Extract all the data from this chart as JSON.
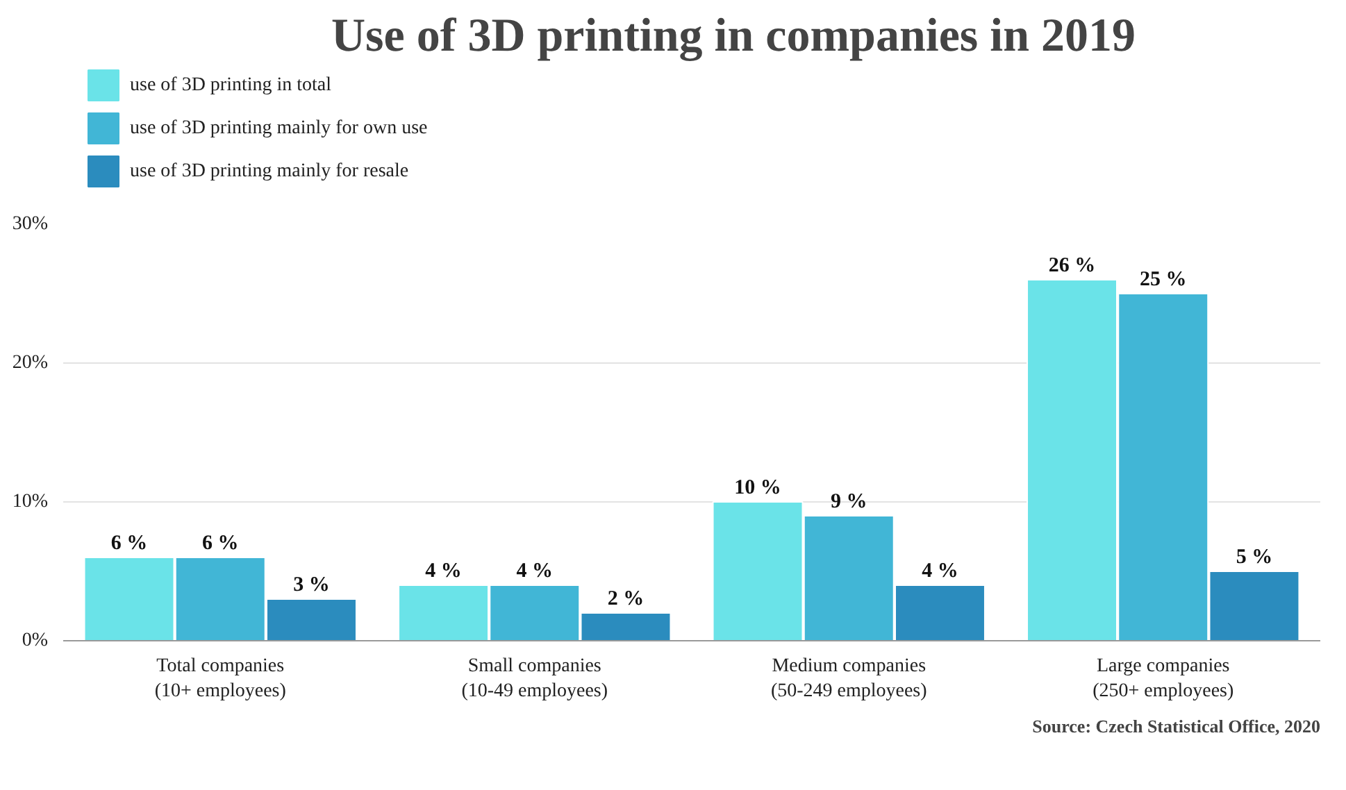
{
  "chart_data": {
    "type": "bar",
    "title": "Use of 3D printing in companies in 2019",
    "categories": [
      "Total companies\n(10+ employees)",
      "Small companies\n(10-49 employees)",
      "Medium companies\n(50-249 employees)",
      "Large companies\n(250+ employees)"
    ],
    "series": [
      {
        "name": "use of 3D printing in total",
        "color": "#6ae3e8",
        "values": [
          6,
          4,
          10,
          26
        ],
        "value_labels": [
          "6 %",
          "4 %",
          "10 %",
          "26 %"
        ]
      },
      {
        "name": "use of 3D printing mainly for own use",
        "color": "#41b6d6",
        "values": [
          6,
          4,
          9,
          25
        ],
        "value_labels": [
          "6 %",
          "4 %",
          "9 %",
          "25 %"
        ]
      },
      {
        "name": "use of 3D printing mainly for resale",
        "color": "#2b8cbe",
        "values": [
          3,
          2,
          4,
          5
        ],
        "value_labels": [
          "3 %",
          "2 %",
          "4 %",
          "5 %"
        ]
      }
    ],
    "ylim": [
      0,
      30
    ],
    "yticks": [
      {
        "value": 0,
        "label": "0%"
      },
      {
        "value": 10,
        "label": "10%"
      },
      {
        "value": 20,
        "label": "20%"
      },
      {
        "value": 30,
        "label": "30%"
      }
    ],
    "grid": "y",
    "legend": "top left",
    "annotations": [
      "Source: Czech Statistical Office, 2020"
    ]
  }
}
